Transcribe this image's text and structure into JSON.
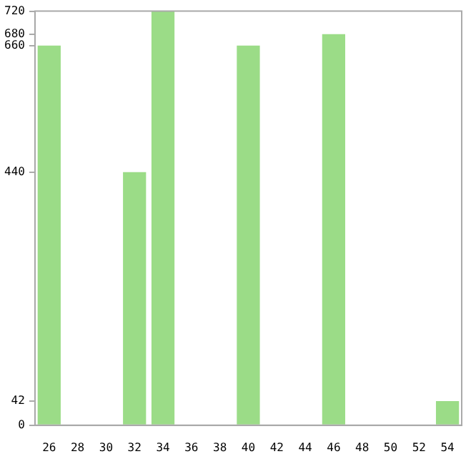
{
  "chart_data": {
    "type": "bar",
    "categories": [
      "26",
      "28",
      "30",
      "32",
      "34",
      "36",
      "38",
      "40",
      "42",
      "44",
      "46",
      "48",
      "50",
      "52",
      "54"
    ],
    "values": [
      660,
      0,
      0,
      440,
      720,
      0,
      0,
      660,
      0,
      0,
      680,
      0,
      0,
      0,
      42
    ],
    "color": "#9bdc87",
    "ylim": [
      0,
      720
    ],
    "yticks": [
      0,
      42,
      440,
      660,
      680,
      720
    ],
    "grid": false,
    "legend": false
  }
}
